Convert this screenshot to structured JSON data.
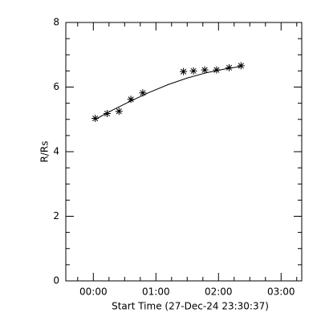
{
  "chart_data": {
    "type": "scatter",
    "xlabel": "Start Time (27-Dec-24 23:30:37)",
    "ylabel": "R/Rs",
    "xlim": [
      -0.44,
      3.33
    ],
    "xticks": [
      {
        "value": 0,
        "label": "00:00"
      },
      {
        "value": 1,
        "label": "01:00"
      },
      {
        "value": 2,
        "label": "02:00"
      },
      {
        "value": 3,
        "label": "03:00"
      }
    ],
    "ylim": [
      0,
      8
    ],
    "yticks": [
      0,
      2,
      4,
      6,
      8
    ],
    "series": [
      {
        "marker": "asterisk",
        "color": "#000000",
        "x": [
          0.03,
          0.22,
          0.41,
          0.6,
          0.79,
          1.44,
          1.6,
          1.78,
          1.97,
          2.17,
          2.36
        ],
        "values": [
          5.03,
          5.18,
          5.25,
          5.62,
          5.82,
          6.48,
          6.5,
          6.53,
          6.53,
          6.6,
          6.66
        ]
      },
      {
        "marker": "line",
        "color": "#000000",
        "x": [
          0.03,
          0.3,
          0.6,
          0.9,
          1.2,
          1.5,
          1.8,
          2.1,
          2.36
        ],
        "values": [
          5.0,
          5.28,
          5.57,
          5.84,
          6.08,
          6.28,
          6.44,
          6.56,
          6.64
        ]
      }
    ]
  }
}
